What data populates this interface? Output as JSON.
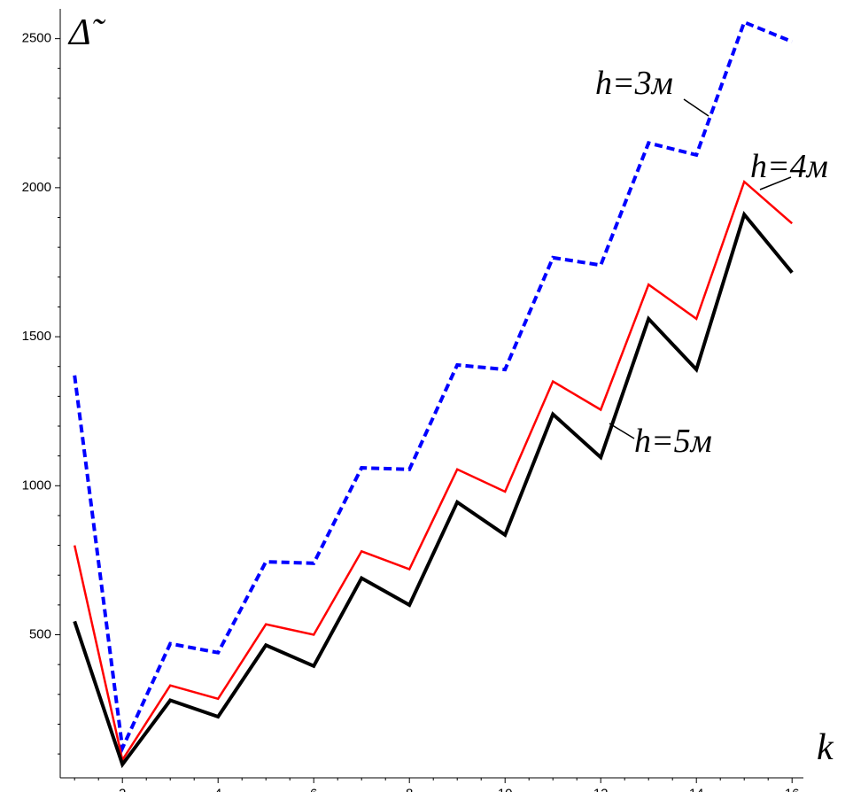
{
  "chart_data": {
    "type": "line",
    "xlabel": "k",
    "ylabel": "Δ̃",
    "xlim": [
      0.7,
      16.2
    ],
    "ylim": [
      20,
      2600
    ],
    "x_ticks": [
      2,
      4,
      6,
      8,
      10,
      12,
      14,
      16
    ],
    "y_ticks": [
      500,
      1000,
      1500,
      2000,
      2500
    ],
    "x": [
      1,
      2,
      3,
      4,
      5,
      6,
      7,
      8,
      9,
      10,
      11,
      12,
      13,
      14,
      15,
      16
    ],
    "series": [
      {
        "name": "h=3м",
        "color": "#0000ff",
        "style": "dashed",
        "values": [
          1370,
          120,
          470,
          440,
          745,
          740,
          1060,
          1055,
          1405,
          1390,
          1765,
          1740,
          2150,
          2110,
          2555,
          2490
        ]
      },
      {
        "name": "h=4м",
        "color": "#ff0000",
        "style": "solid",
        "values": [
          800,
          80,
          330,
          285,
          535,
          500,
          780,
          720,
          1055,
          980,
          1350,
          1255,
          1675,
          1560,
          2020,
          1880
        ]
      },
      {
        "name": "h=5м",
        "color": "#000000",
        "style": "solid-thick",
        "values": [
          545,
          65,
          280,
          225,
          465,
          395,
          690,
          600,
          945,
          835,
          1240,
          1095,
          1560,
          1390,
          1910,
          1715
        ]
      }
    ],
    "annotations": [
      "h=3м",
      "h=4м",
      "h=5м"
    ]
  }
}
